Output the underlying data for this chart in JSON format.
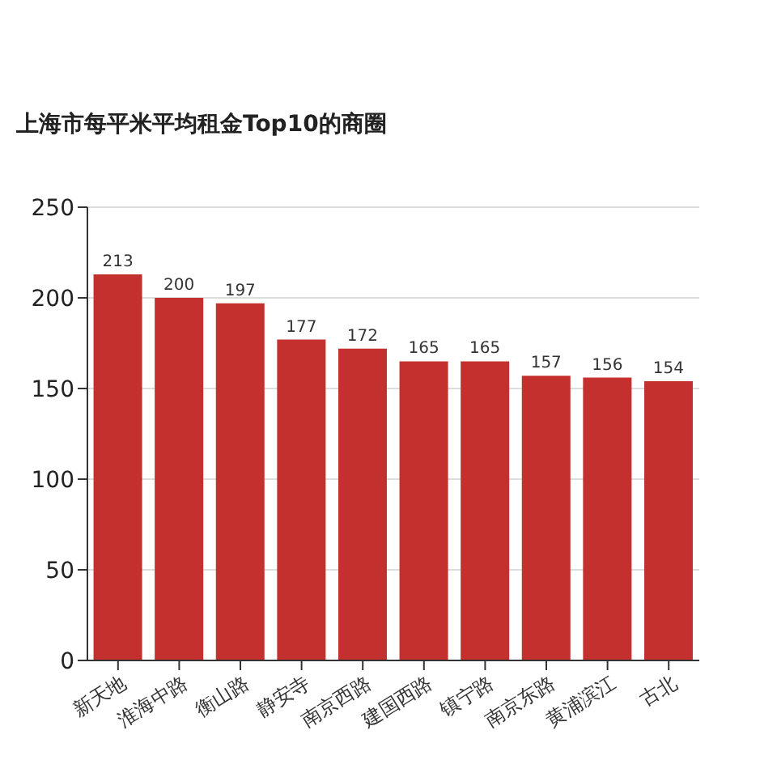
{
  "chart_data": {
    "type": "bar",
    "title": "上海市每平米平均租金Top10的商圈",
    "categories": [
      "新天地",
      "淮海中路",
      "衡山路",
      "静安寺",
      "南京西路",
      "建国西路",
      "镇宁路",
      "南京东路",
      "黄浦滨江",
      "古北"
    ],
    "values": [
      213,
      200,
      197,
      177,
      172,
      165,
      165,
      157,
      156,
      154
    ],
    "color": "#c3302e",
    "ylim": [
      0,
      250
    ],
    "yticks": [
      0,
      50,
      100,
      150,
      200,
      250
    ],
    "grid": "y",
    "data_labels": true
  }
}
